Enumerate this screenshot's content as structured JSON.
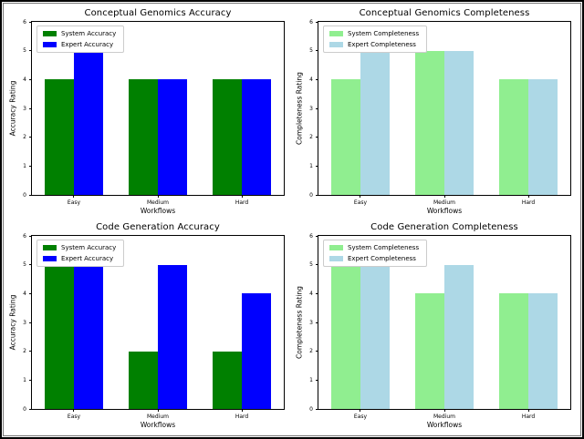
{
  "figure": {
    "background": "#ffffff",
    "outer_border_color": "#000000",
    "inner_border_color": "#777777"
  },
  "chart_data": [
    {
      "type": "bar",
      "title": "Conceptual Genomics Accuracy",
      "xlabel": "Workflows",
      "ylabel": "Accuracy Rating",
      "categories": [
        "Easy",
        "Medium",
        "Hard"
      ],
      "series": [
        {
          "name": "System Accuracy",
          "color": "#008000",
          "values": [
            4,
            4,
            4
          ]
        },
        {
          "name": "Expert Accuracy",
          "color": "#0000ff",
          "values": [
            5,
            4,
            4
          ]
        }
      ],
      "ylim": [
        0,
        6
      ],
      "yticks": [
        0,
        1,
        2,
        3,
        4,
        5,
        6
      ],
      "bar_width": 0.35,
      "grid": false,
      "legend_position": "upper left"
    },
    {
      "type": "bar",
      "title": "Conceptual Genomics Completeness",
      "xlabel": "Workflows",
      "ylabel": "Completeness Rating",
      "categories": [
        "Easy",
        "Medium",
        "Hard"
      ],
      "series": [
        {
          "name": "System Completeness",
          "color": "#90ee90",
          "values": [
            4,
            5,
            4
          ]
        },
        {
          "name": "Expert Completeness",
          "color": "#add8e6",
          "values": [
            5,
            5,
            4
          ]
        }
      ],
      "ylim": [
        0,
        6
      ],
      "yticks": [
        0,
        1,
        2,
        3,
        4,
        5,
        6
      ],
      "bar_width": 0.35,
      "grid": false,
      "legend_position": "upper left"
    },
    {
      "type": "bar",
      "title": "Code Generation Accuracy",
      "xlabel": "Workflows",
      "ylabel": "Accuracy Rating",
      "categories": [
        "Easy",
        "Medium",
        "Hard"
      ],
      "series": [
        {
          "name": "System Accuracy",
          "color": "#008000",
          "values": [
            5,
            2,
            2
          ]
        },
        {
          "name": "Expert Accuracy",
          "color": "#0000ff",
          "values": [
            5,
            5,
            4
          ]
        }
      ],
      "ylim": [
        0,
        6
      ],
      "yticks": [
        0,
        1,
        2,
        3,
        4,
        5,
        6
      ],
      "bar_width": 0.35,
      "grid": false,
      "legend_position": "upper left"
    },
    {
      "type": "bar",
      "title": "Code Generation Completeness",
      "xlabel": "Workflows",
      "ylabel": "Completeness Rating",
      "categories": [
        "Easy",
        "Medium",
        "Hard"
      ],
      "series": [
        {
          "name": "System Completeness",
          "color": "#90ee90",
          "values": [
            5,
            4,
            4
          ]
        },
        {
          "name": "Expert Completeness",
          "color": "#add8e6",
          "values": [
            5,
            5,
            4
          ]
        }
      ],
      "ylim": [
        0,
        6
      ],
      "yticks": [
        0,
        1,
        2,
        3,
        4,
        5,
        6
      ],
      "bar_width": 0.35,
      "grid": false,
      "legend_position": "upper left"
    }
  ]
}
